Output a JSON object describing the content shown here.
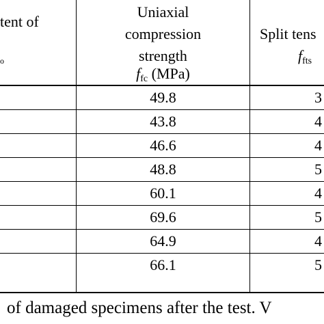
{
  "header": {
    "left_line1": "tent of",
    "left_line2": "o",
    "mid_line1": "Uniaxial",
    "mid_line2": "compression",
    "mid_line3": "strength",
    "mid_symbol": "f",
    "mid_symbol_sub": "fc",
    "mid_unit": " (MPa)",
    "right_line1": "Split tens",
    "right_symbol": "f",
    "right_symbol_sub": "fts"
  },
  "rows": [
    {
      "ucs": "49.8",
      "right": "3"
    },
    {
      "ucs": "43.8",
      "right": "4"
    },
    {
      "ucs": "46.6",
      "right": "4"
    },
    {
      "ucs": "48.8",
      "right": "5"
    },
    {
      "ucs": "60.1",
      "right": "4"
    },
    {
      "ucs": "69.6",
      "right": "5"
    },
    {
      "ucs": "64.9",
      "right": "4"
    },
    {
      "ucs": "66.1",
      "right": "5"
    }
  ],
  "caption": "of damaged specimens after the test. V"
}
